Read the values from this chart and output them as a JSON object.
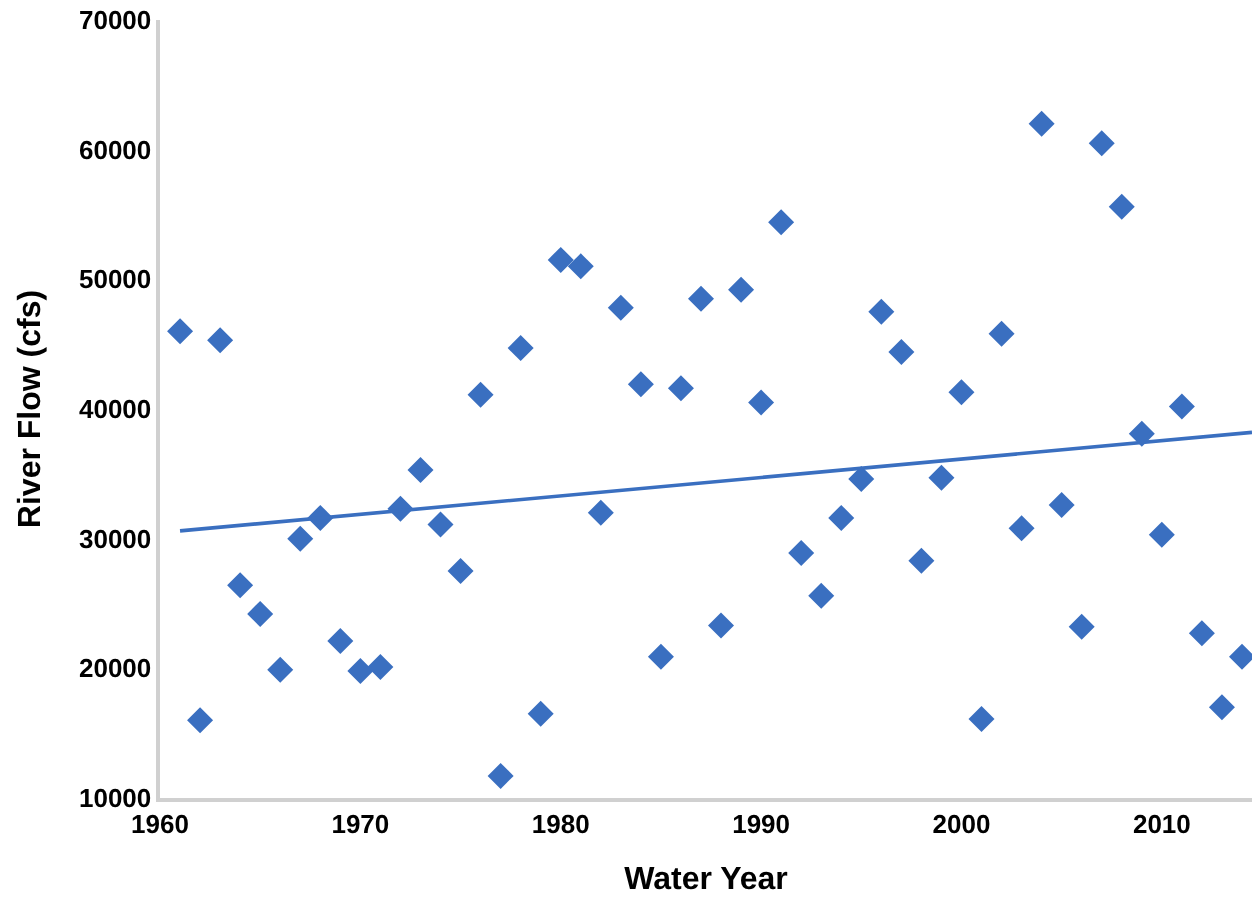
{
  "chart_data": {
    "type": "scatter",
    "xlabel": "Water Year",
    "ylabel": "River Flow (cfs)",
    "xlim": [
      1960,
      2014.5
    ],
    "xticks": [
      1960,
      1970,
      1980,
      1990,
      2000,
      2010
    ],
    "ylim": [
      10000,
      70000
    ],
    "yticks": [
      10000,
      20000,
      30000,
      40000,
      50000,
      60000,
      70000
    ],
    "series": [
      {
        "marker": "diamond",
        "color": "#3a6fc0",
        "x": [
          1961,
          1962,
          1963,
          1964,
          1965,
          1966,
          1967,
          1968,
          1969,
          1970,
          1971,
          1972,
          1973,
          1974,
          1975,
          1976,
          1977,
          1978,
          1979,
          1980,
          1981,
          1982,
          1983,
          1984,
          1985,
          1986,
          1987,
          1988,
          1989,
          1990,
          1991,
          1992,
          1993,
          1994,
          1995,
          1996,
          1997,
          1998,
          1999,
          2000,
          2001,
          2002,
          2003,
          2004,
          2005,
          2006,
          2007,
          2008,
          2009,
          2010,
          2011,
          2012,
          2013,
          2014
        ],
        "values": [
          46000,
          16000,
          45300,
          26400,
          24200,
          19900,
          30000,
          31600,
          22100,
          19800,
          20100,
          32300,
          35300,
          31100,
          27500,
          41100,
          11700,
          44700,
          16500,
          51500,
          51000,
          32000,
          47800,
          41900,
          20900,
          41600,
          48500,
          23300,
          49200,
          40500,
          54400,
          28900,
          25600,
          31600,
          34600,
          47500,
          44400,
          28300,
          34700,
          41300,
          16100,
          45800,
          30800,
          62000,
          32600,
          23200,
          60500,
          55600,
          38100,
          30300,
          40200,
          22700,
          17000,
          20900
        ]
      },
      {
        "type": "line",
        "marker": "none",
        "color": "#3a6fc0",
        "x": [
          1961,
          2014.5
        ],
        "values": [
          30600,
          38200
        ]
      }
    ]
  }
}
